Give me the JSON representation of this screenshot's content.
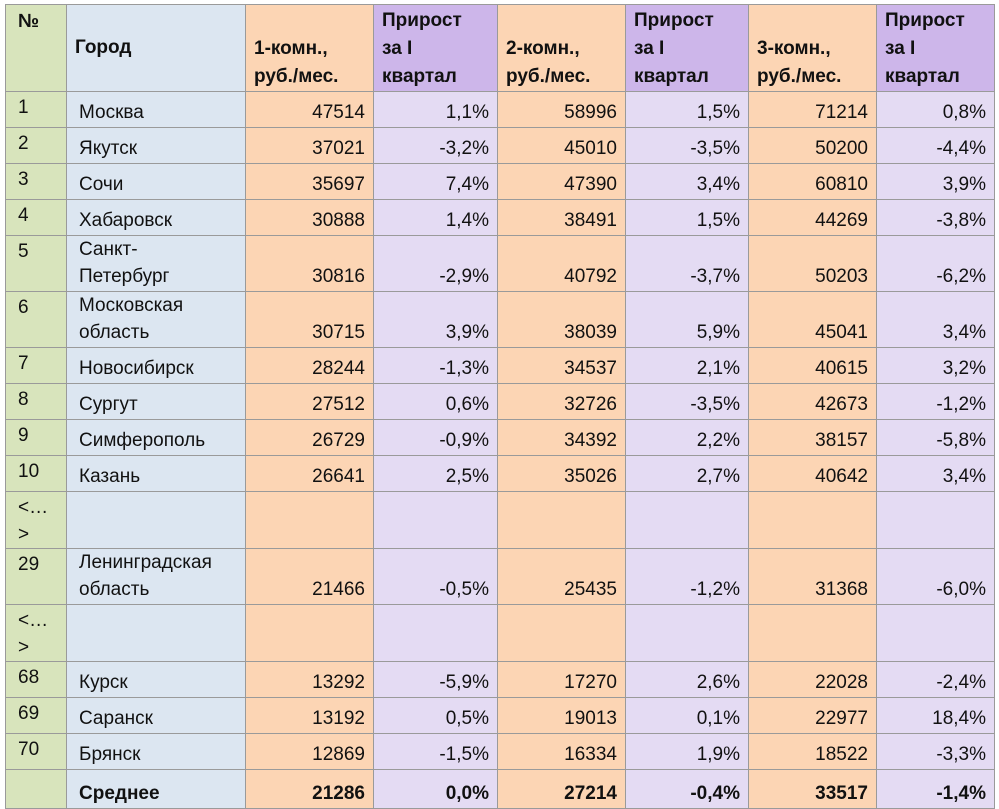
{
  "headers": {
    "num": "№",
    "city": "Город",
    "rent1": [
      "1-комн.,",
      "руб./мес."
    ],
    "growth1": [
      "Прирост",
      "за I",
      "квартал"
    ],
    "rent2": [
      "2-комн.,",
      "руб./мес."
    ],
    "growth2": [
      "Прирост",
      "за I",
      "квартал"
    ],
    "rent3": [
      "3-комн.,",
      "руб./мес."
    ],
    "growth3": [
      "Прирост",
      "за I",
      "квартал"
    ]
  },
  "rows": [
    {
      "num": "1",
      "city": [
        "Москва"
      ],
      "r1": "47514",
      "g1": "1,1%",
      "r2": "58996",
      "g2": "1,5%",
      "r3": "71214",
      "g3": "0,8%"
    },
    {
      "num": "2",
      "city": [
        "Якутск"
      ],
      "r1": "37021",
      "g1": "-3,2%",
      "r2": "45010",
      "g2": "-3,5%",
      "r3": "50200",
      "g3": "-4,4%"
    },
    {
      "num": "3",
      "city": [
        "Сочи"
      ],
      "r1": "35697",
      "g1": "7,4%",
      "r2": "47390",
      "g2": "3,4%",
      "r3": "60810",
      "g3": "3,9%"
    },
    {
      "num": "4",
      "city": [
        "Хабаровск"
      ],
      "r1": "30888",
      "g1": "1,4%",
      "r2": "38491",
      "g2": "1,5%",
      "r3": "44269",
      "g3": "-3,8%"
    },
    {
      "num": "5",
      "city": [
        "Санкт-",
        "Петербург"
      ],
      "r1": "30816",
      "g1": "-2,9%",
      "r2": "40792",
      "g2": "-3,7%",
      "r3": "50203",
      "g3": "-6,2%"
    },
    {
      "num": "6",
      "city": [
        "Московская",
        "область"
      ],
      "r1": "30715",
      "g1": "3,9%",
      "r2": "38039",
      "g2": "5,9%",
      "r3": "45041",
      "g3": "3,4%"
    },
    {
      "num": "7",
      "city": [
        "Новосибирск"
      ],
      "r1": "28244",
      "g1": "-1,3%",
      "r2": "34537",
      "g2": "2,1%",
      "r3": "40615",
      "g3": "3,2%"
    },
    {
      "num": "8",
      "city": [
        "Сургут"
      ],
      "r1": "27512",
      "g1": "0,6%",
      "r2": "32726",
      "g2": "-3,5%",
      "r3": "42673",
      "g3": "-1,2%"
    },
    {
      "num": "9",
      "city": [
        "Симферополь"
      ],
      "r1": "26729",
      "g1": "-0,9%",
      "r2": "34392",
      "g2": "2,2%",
      "r3": "38157",
      "g3": "-5,8%"
    },
    {
      "num": "10",
      "city": [
        "Казань"
      ],
      "r1": "26641",
      "g1": "2,5%",
      "r2": "35026",
      "g2": "2,7%",
      "r3": "40642",
      "g3": "3,4%"
    },
    {
      "num": "<…>",
      "gap": true
    },
    {
      "num": "29",
      "city": [
        "Ленинградская",
        "область"
      ],
      "r1": "21466",
      "g1": "-0,5%",
      "r2": "25435",
      "g2": "-1,2%",
      "r3": "31368",
      "g3": "-6,0%"
    },
    {
      "num": "<…>",
      "gap": true
    },
    {
      "num": "68",
      "city": [
        "Курск"
      ],
      "r1": "13292",
      "g1": "-5,9%",
      "r2": "17270",
      "g2": "2,6%",
      "r3": "22028",
      "g3": "-2,4%"
    },
    {
      "num": "69",
      "city": [
        "Саранск"
      ],
      "r1": "13192",
      "g1": "0,5%",
      "r2": "19013",
      "g2": "0,1%",
      "r3": "22977",
      "g3": "18,4%"
    },
    {
      "num": "70",
      "city": [
        "Брянск"
      ],
      "r1": "12869",
      "g1": "-1,5%",
      "r2": "16334",
      "g2": "1,9%",
      "r3": "18522",
      "g3": "-3,3%"
    }
  ],
  "average": {
    "label": "Среднее",
    "r1": "21286",
    "g1": "0,0%",
    "r2": "27214",
    "g2": "-0,4%",
    "r3": "33517",
    "g3": "-1,4%"
  }
}
